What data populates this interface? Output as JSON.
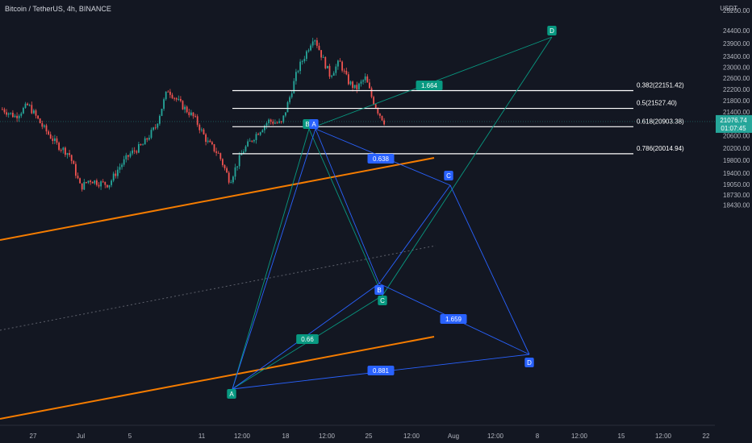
{
  "title": "Bitcoin / TetherUS, 4h, BINANCE",
  "currency": "USDT",
  "colors": {
    "background": "#131722",
    "up": "#26a69a",
    "down": "#ef5350",
    "channel": "#f57c00",
    "fib": "#ffffff",
    "pattern_blue": "#2962ff",
    "pattern_green": "#089981",
    "price_tag": "#26a69a"
  },
  "chart_data": {
    "type": "candlestick",
    "ylim": [
      18230,
      27300
    ],
    "y_ticks": [
      26800.0,
      26000.0,
      25200.0,
      24400.0,
      23900.0,
      23400.0,
      23000.0,
      22600.0,
      22200.0,
      21800.0,
      21400.0,
      21000.0,
      20600.0,
      20200.0,
      19800.0,
      19400.0,
      19050.0,
      18730.0,
      18430.0
    ],
    "x_ticks": [
      "27",
      "Jul",
      "5",
      "11",
      "12:00",
      "18",
      "12:00",
      "25",
      "12:00",
      "Aug",
      "12:00",
      "8",
      "12:00",
      "15",
      "12:00",
      "22"
    ],
    "last_price": "21076.74",
    "countdown": "01:07:45",
    "fib_levels": [
      {
        "ratio": 0.382,
        "label": "0.382(22151.42)",
        "price": 22151.42
      },
      {
        "ratio": 0.5,
        "label": "0.5(21527.40)",
        "price": 21527.4
      },
      {
        "ratio": 0.618,
        "label": "0.618(20903.38)",
        "price": 20903.38
      },
      {
        "ratio": 0.786,
        "label": "0.786(20014.94)",
        "price": 20014.94
      }
    ],
    "ratio_labels": [
      "1.664",
      "0.638",
      "0.66",
      "1.659",
      "0.881"
    ],
    "point_labels": {
      "a": "A",
      "b": "B",
      "c": "C",
      "d": "D"
    }
  }
}
